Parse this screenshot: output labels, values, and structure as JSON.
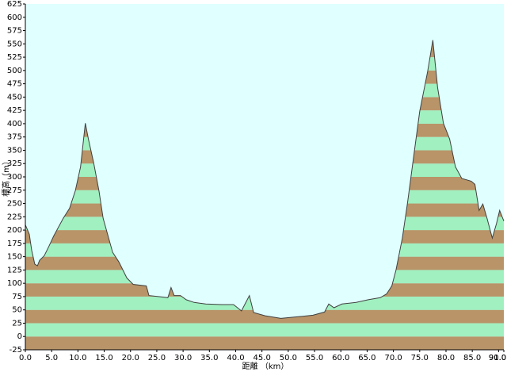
{
  "chart_data": {
    "type": "area",
    "x_label": "距離 （km）",
    "y_label": "標高（m）",
    "x": [
      0,
      0.75,
      1.2,
      1.8,
      2.3,
      2.7,
      3.6,
      4.5,
      5.4,
      6.0,
      7.2,
      8.4,
      9.5,
      10.5,
      11.4,
      12.0,
      13.0,
      14.0,
      14.8,
      16.6,
      17.8,
      19.3,
      20.5,
      23.0,
      23.5,
      25.3,
      27.1,
      27.7,
      28.3,
      29.5,
      30.6,
      32.1,
      34.3,
      37.3,
      39.6,
      41.1,
      42.6,
      43.4,
      45.6,
      48.6,
      51.7,
      54.7,
      56.9,
      57.7,
      58.7,
      60.2,
      62.9,
      65.2,
      67.5,
      68.7,
      69.7,
      70.5,
      71.7,
      72.7,
      73.8,
      75.0,
      76.5,
      77.5,
      78.4,
      79.5,
      80.7,
      81.8,
      83.0,
      84.8,
      85.5,
      86.3,
      87.0,
      87.8,
      88.8,
      89.6,
      90.2,
      91.0
    ],
    "series": [
      {
        "name": "elevation",
        "color": "#404040",
        "values": [
          210,
          192,
          162,
          136,
          133,
          143,
          152,
          170,
          189,
          200,
          222,
          241,
          274,
          319,
          401,
          371,
          326,
          274,
          222,
          158,
          140,
          110,
          98,
          95,
          77,
          75,
          73,
          92,
          77,
          77,
          69,
          64,
          61,
          60,
          60,
          48,
          77,
          45,
          39,
          34,
          37,
          40,
          46,
          61,
          54,
          61,
          64,
          69,
          73,
          80,
          95,
          125,
          185,
          252,
          334,
          423,
          498,
          557,
          468,
          401,
          371,
          319,
          297,
          292,
          286,
          237,
          249,
          222,
          185,
          212,
          237,
          217
        ]
      }
    ],
    "band_colors": [
      "#b89468",
      "#a0f0c0"
    ],
    "background": "#e0ffff",
    "xlim": [
      0,
      91
    ],
    "ylim": [
      -25,
      625
    ],
    "xticks": [
      {
        "value": 0,
        "label": "0.0"
      },
      {
        "value": 5,
        "label": "5.0"
      },
      {
        "value": 10,
        "label": "10.0"
      },
      {
        "value": 15,
        "label": "15.0"
      },
      {
        "value": 20,
        "label": "20.0"
      },
      {
        "value": 25,
        "label": "25.0"
      },
      {
        "value": 30,
        "label": "30.0"
      },
      {
        "value": 35,
        "label": "35.0"
      },
      {
        "value": 40,
        "label": "40.0"
      },
      {
        "value": 45,
        "label": "45.0"
      },
      {
        "value": 50,
        "label": "50.0"
      },
      {
        "value": 55,
        "label": "55.0"
      },
      {
        "value": 60,
        "label": "60.0"
      },
      {
        "value": 65,
        "label": "65.0"
      },
      {
        "value": 70,
        "label": "70.0"
      },
      {
        "value": 75,
        "label": "75.0"
      },
      {
        "value": 80,
        "label": "80.0"
      },
      {
        "value": 85,
        "label": "85.0"
      },
      {
        "value": 90,
        "label": "90.0"
      },
      {
        "value": 91,
        "label": "91.0"
      }
    ],
    "yticks": [
      -25,
      0,
      25,
      50,
      75,
      100,
      125,
      150,
      175,
      200,
      225,
      250,
      275,
      300,
      325,
      350,
      375,
      400,
      425,
      450,
      475,
      500,
      525,
      550,
      575,
      600,
      625
    ]
  }
}
